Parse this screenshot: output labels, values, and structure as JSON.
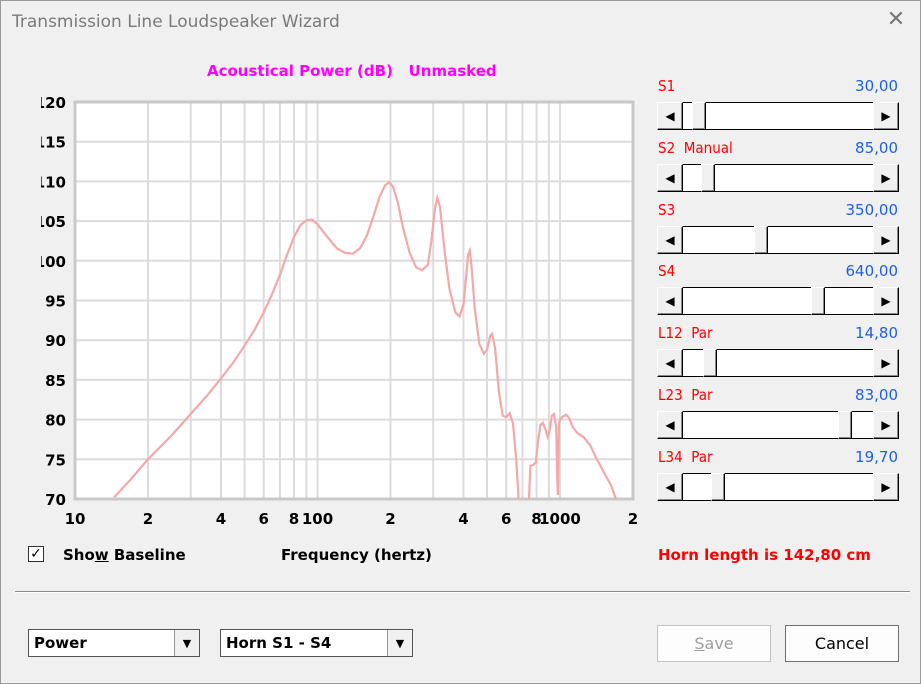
{
  "window": {
    "title": "Transmission Line Loudspeaker Wizard",
    "close_glyph": "✕"
  },
  "chart_data": {
    "type": "line",
    "title": "Acoustical Power (dB)   Unmasked",
    "xlabel": "Frequency (hertz)",
    "x_scale": "log",
    "xlim": [
      10,
      2000
    ],
    "ylim": [
      70,
      120
    ],
    "y_ticks": [
      "120",
      "115",
      "110",
      "105",
      "100",
      "95",
      "90",
      "85",
      "80",
      "75",
      "70"
    ],
    "x_ticks": [
      {
        "x": 10,
        "label": "10"
      },
      {
        "x": 20,
        "label": "2"
      },
      {
        "x": 40,
        "label": "4"
      },
      {
        "x": 60,
        "label": "6"
      },
      {
        "x": 80,
        "label": "8"
      },
      {
        "x": 100,
        "label": "100"
      },
      {
        "x": 200,
        "label": "2"
      },
      {
        "x": 400,
        "label": "4"
      },
      {
        "x": 600,
        "label": "6"
      },
      {
        "x": 800,
        "label": "8"
      },
      {
        "x": 1000,
        "label": "1000"
      },
      {
        "x": 2000,
        "label": "2"
      }
    ],
    "grid": true,
    "line_color": "#f4a8a8",
    "points": [
      [
        14.5,
        70.2
      ],
      [
        17,
        72.5
      ],
      [
        20,
        75.0
      ],
      [
        25,
        78.0
      ],
      [
        30,
        80.7
      ],
      [
        35,
        83.0
      ],
      [
        40,
        85.2
      ],
      [
        45,
        87.2
      ],
      [
        50,
        89.3
      ],
      [
        55,
        91.3
      ],
      [
        60,
        93.5
      ],
      [
        65,
        95.8
      ],
      [
        70,
        98.2
      ],
      [
        75,
        100.8
      ],
      [
        80,
        103.0
      ],
      [
        85,
        104.5
      ],
      [
        90,
        105.1
      ],
      [
        95,
        105.2
      ],
      [
        100,
        104.6
      ],
      [
        110,
        103.0
      ],
      [
        120,
        101.6
      ],
      [
        130,
        101.0
      ],
      [
        140,
        100.9
      ],
      [
        150,
        101.6
      ],
      [
        160,
        103.2
      ],
      [
        170,
        105.6
      ],
      [
        180,
        108.0
      ],
      [
        190,
        109.5
      ],
      [
        198,
        109.9
      ],
      [
        205,
        109.3
      ],
      [
        215,
        107.2
      ],
      [
        225,
        104.2
      ],
      [
        240,
        101.0
      ],
      [
        255,
        99.2
      ],
      [
        270,
        98.8
      ],
      [
        285,
        99.5
      ],
      [
        295,
        102.5
      ],
      [
        305,
        106.5
      ],
      [
        312,
        107.9
      ],
      [
        320,
        106.8
      ],
      [
        335,
        101.0
      ],
      [
        350,
        96.5
      ],
      [
        370,
        93.5
      ],
      [
        385,
        93.0
      ],
      [
        400,
        94.5
      ],
      [
        410,
        98.0
      ],
      [
        418,
        100.8
      ],
      [
        425,
        101.3
      ],
      [
        432,
        99.2
      ],
      [
        445,
        94.0
      ],
      [
        465,
        89.5
      ],
      [
        485,
        88.3
      ],
      [
        500,
        88.8
      ],
      [
        515,
        90.5
      ],
      [
        525,
        90.8
      ],
      [
        540,
        89.0
      ],
      [
        560,
        83.5
      ],
      [
        580,
        80.5
      ],
      [
        600,
        80.3
      ],
      [
        620,
        80.8
      ],
      [
        640,
        79.5
      ],
      [
        660,
        75.0
      ],
      [
        675,
        70.0
      ]
    ],
    "points_2": [
      [
        745,
        70.0
      ],
      [
        755,
        74.2
      ],
      [
        775,
        74.3
      ],
      [
        795,
        74.6
      ],
      [
        810,
        77.0
      ],
      [
        830,
        79.3
      ],
      [
        850,
        79.6
      ],
      [
        870,
        78.8
      ],
      [
        890,
        77.8
      ],
      [
        905,
        78.5
      ],
      [
        925,
        80.5
      ],
      [
        945,
        80.7
      ],
      [
        965,
        79.0
      ],
      [
        975,
        72.5
      ],
      [
        980,
        70.5
      ],
      [
        985,
        74.0
      ],
      [
        990,
        79.5
      ],
      [
        1000,
        80.0
      ],
      [
        1030,
        80.4
      ],
      [
        1060,
        80.6
      ],
      [
        1090,
        80.2
      ],
      [
        1130,
        79.0
      ],
      [
        1180,
        78.3
      ],
      [
        1250,
        77.8
      ],
      [
        1330,
        76.8
      ],
      [
        1420,
        75.0
      ],
      [
        1520,
        73.3
      ],
      [
        1620,
        71.8
      ],
      [
        1700,
        70.0
      ]
    ]
  },
  "sliders": [
    {
      "name": "S1",
      "value": "30,00",
      "position": 0.05
    },
    {
      "name": "S2  Manual",
      "value": "85,00",
      "position": 0.1
    },
    {
      "name": "S3",
      "value": "350,00",
      "position": 0.4
    },
    {
      "name": "S4",
      "value": "640,00",
      "position": 0.72
    },
    {
      "name": "L12  Par",
      "value": "14,80",
      "position": 0.11
    },
    {
      "name": "L23  Par",
      "value": "83,00",
      "position": 0.87
    },
    {
      "name": "L34  Par",
      "value": "19,70",
      "position": 0.16
    }
  ],
  "show_baseline": {
    "checked": "✓",
    "label_pre": "Sho",
    "label_u": "w",
    "label_post": " Baseline"
  },
  "horn_length": "Horn length is 142,80 cm",
  "combo_left": {
    "value": "Power"
  },
  "combo_right": {
    "value": "Horn S1 - S4"
  },
  "buttons": {
    "save_pre": "",
    "save_u": "S",
    "save_post": "ave",
    "cancel": "Cancel"
  },
  "icons": {
    "arrow_left": "◀",
    "arrow_right": "▶",
    "dropdown": "▼"
  }
}
